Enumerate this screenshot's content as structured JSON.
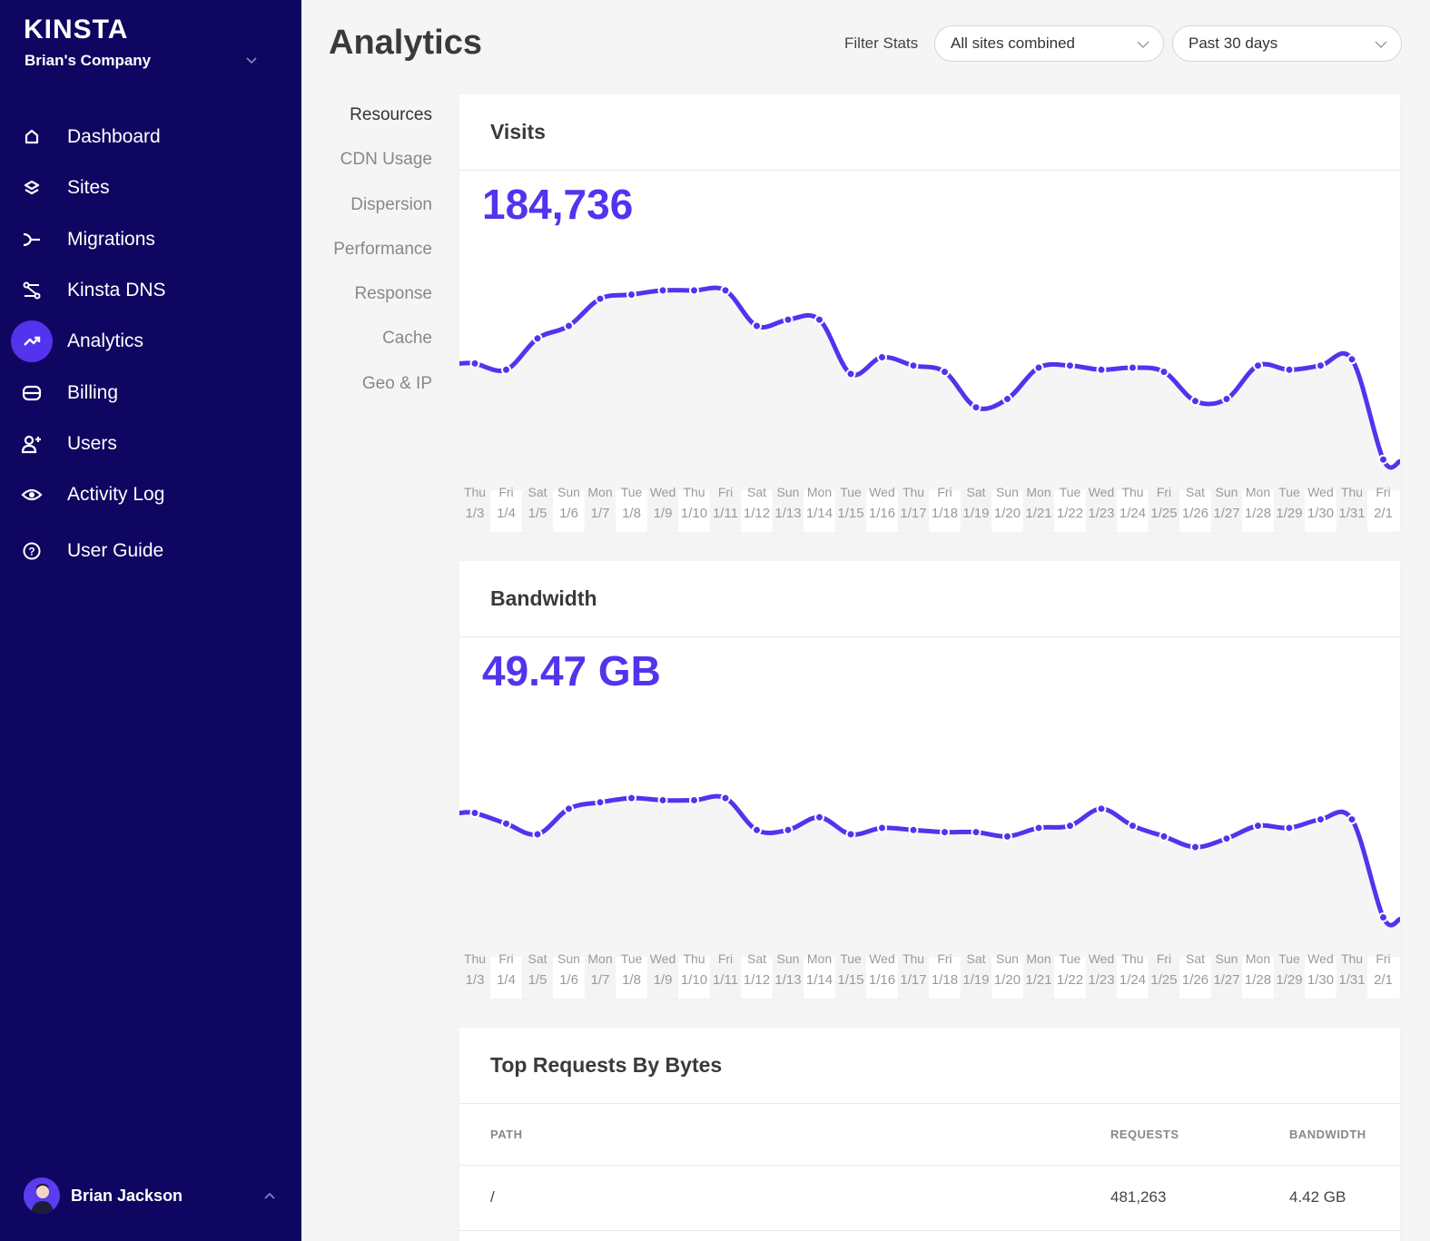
{
  "sidebar": {
    "logo": "KINSTA",
    "company": "Brian's Company",
    "items": [
      {
        "label": "Dashboard",
        "icon": "home-icon"
      },
      {
        "label": "Sites",
        "icon": "layers-icon"
      },
      {
        "label": "Migrations",
        "icon": "migrations-icon"
      },
      {
        "label": "Kinsta DNS",
        "icon": "dns-icon"
      },
      {
        "label": "Analytics",
        "icon": "analytics-icon",
        "active": true
      },
      {
        "label": "Billing",
        "icon": "billing-icon"
      },
      {
        "label": "Users",
        "icon": "user-plus-icon"
      },
      {
        "label": "Activity Log",
        "icon": "eye-icon"
      },
      {
        "label": "User Guide",
        "icon": "help-icon"
      }
    ],
    "user_name": "Brian Jackson"
  },
  "header": {
    "title": "Analytics",
    "filter_label": "Filter Stats",
    "sites_select": "All sites combined",
    "range_select": "Past 30 days"
  },
  "subnav": [
    "Resources",
    "CDN Usage",
    "Dispersion",
    "Performance",
    "Response",
    "Cache",
    "Geo & IP"
  ],
  "visits": {
    "title": "Visits",
    "total": "184,736"
  },
  "bandwidth": {
    "title": "Bandwidth",
    "total": "49.47 GB"
  },
  "top_requests": {
    "title": "Top Requests By Bytes",
    "columns": {
      "path": "PATH",
      "requests": "REQUESTS",
      "bandwidth": "BANDWIDTH"
    },
    "rows": [
      {
        "path": "/",
        "requests": "481,263",
        "bandwidth": "4.42 GB"
      }
    ]
  },
  "colors": {
    "accent": "#5333ed",
    "sidebar": "#0e0660"
  },
  "chart_data": [
    {
      "type": "line",
      "name": "visits",
      "x": [
        {
          "day": "Thu",
          "date": "1/3"
        },
        {
          "day": "Fri",
          "date": "1/4"
        },
        {
          "day": "Sat",
          "date": "1/5"
        },
        {
          "day": "Sun",
          "date": "1/6"
        },
        {
          "day": "Mon",
          "date": "1/7"
        },
        {
          "day": "Tue",
          "date": "1/8"
        },
        {
          "day": "Wed",
          "date": "1/9"
        },
        {
          "day": "Thu",
          "date": "1/10"
        },
        {
          "day": "Fri",
          "date": "1/11"
        },
        {
          "day": "Sat",
          "date": "1/12"
        },
        {
          "day": "Sun",
          "date": "1/13"
        },
        {
          "day": "Mon",
          "date": "1/14"
        },
        {
          "day": "Tue",
          "date": "1/15"
        },
        {
          "day": "Wed",
          "date": "1/16"
        },
        {
          "day": "Thu",
          "date": "1/17"
        },
        {
          "day": "Fri",
          "date": "1/18"
        },
        {
          "day": "Sat",
          "date": "1/19"
        },
        {
          "day": "Sun",
          "date": "1/20"
        },
        {
          "day": "Mon",
          "date": "1/21"
        },
        {
          "day": "Tue",
          "date": "1/22"
        },
        {
          "day": "Wed",
          "date": "1/23"
        },
        {
          "day": "Thu",
          "date": "1/24"
        },
        {
          "day": "Fri",
          "date": "1/25"
        },
        {
          "day": "Sat",
          "date": "1/26"
        },
        {
          "day": "Sun",
          "date": "1/27"
        },
        {
          "day": "Mon",
          "date": "1/28"
        },
        {
          "day": "Tue",
          "date": "1/29"
        },
        {
          "day": "Wed",
          "date": "1/30"
        },
        {
          "day": "Thu",
          "date": "1/31"
        },
        {
          "day": "Fri",
          "date": "2/1"
        }
      ],
      "values": [
        6100,
        5950,
        6700,
        7000,
        7650,
        7750,
        7850,
        7850,
        7850,
        7000,
        7150,
        7150,
        5850,
        6250,
        6050,
        5900,
        5050,
        5250,
        6000,
        6050,
        5950,
        6000,
        5900,
        5200,
        5250,
        6050,
        5950,
        6050,
        6200,
        3800
      ],
      "ylim": [
        3500,
        8500
      ],
      "grid": false
    },
    {
      "type": "line",
      "name": "bandwidth",
      "x": "same as visits",
      "values": [
        1.85,
        1.6,
        1.35,
        1.95,
        2.1,
        2.2,
        2.15,
        2.15,
        2.2,
        1.45,
        1.45,
        1.75,
        1.35,
        1.5,
        1.45,
        1.4,
        1.4,
        1.3,
        1.5,
        1.55,
        1.95,
        1.55,
        1.3,
        1.05,
        1.25,
        1.55,
        1.5,
        1.7,
        1.7,
        -0.6
      ],
      "ylim": [
        -1.1,
        3.8
      ],
      "grid": false
    }
  ]
}
